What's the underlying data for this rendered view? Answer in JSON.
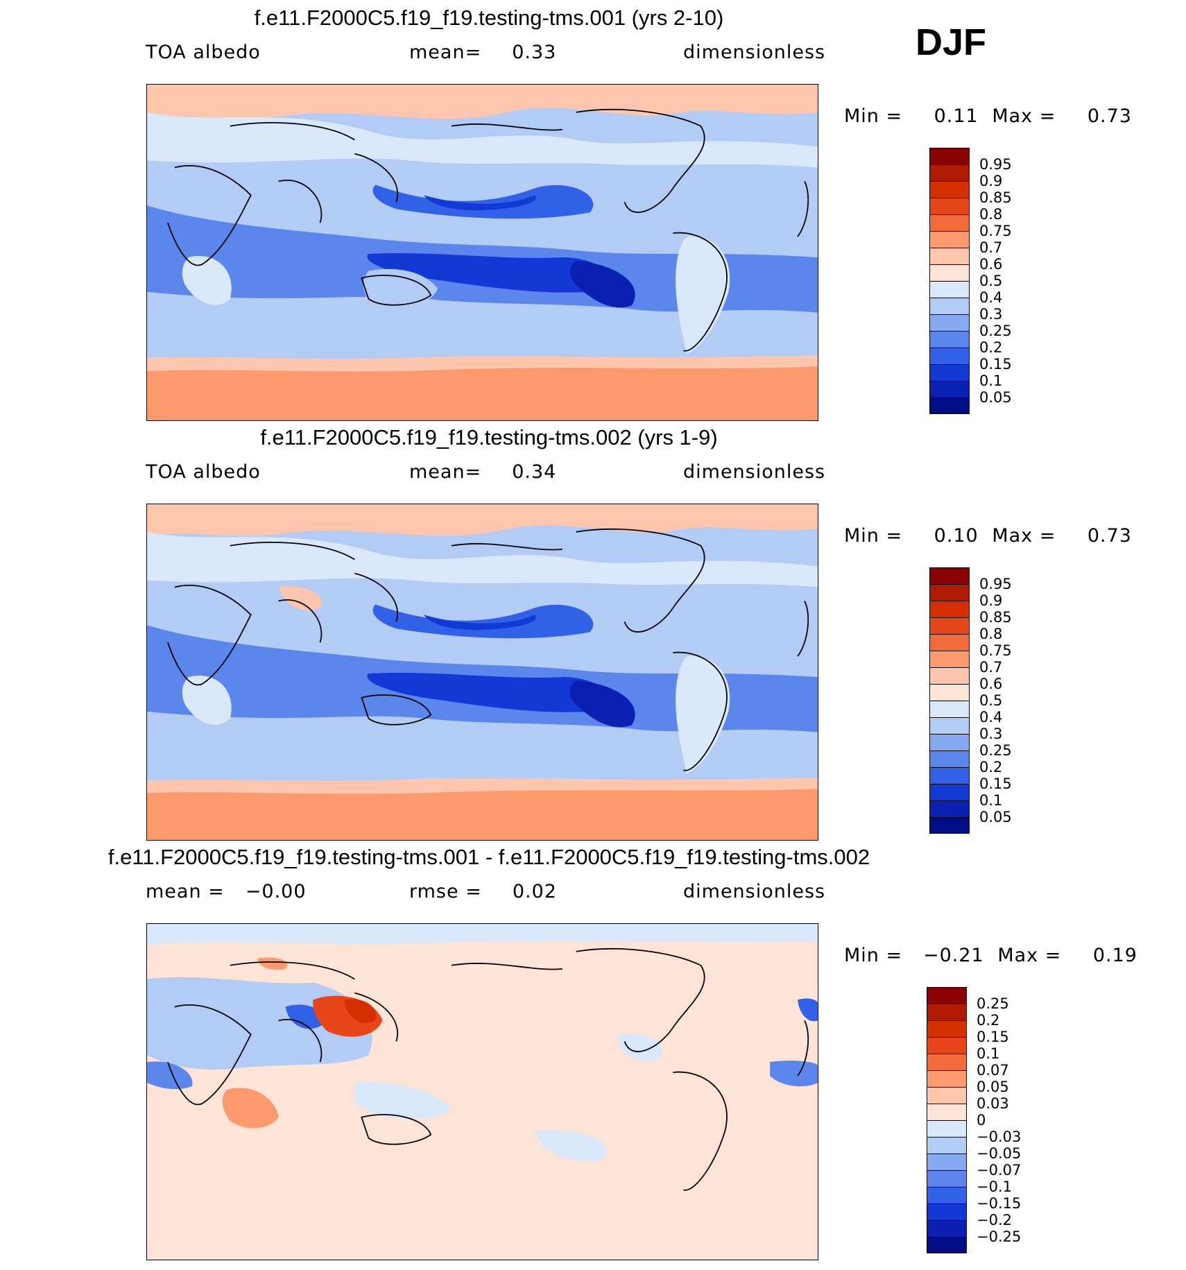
{
  "season_label": "DJF",
  "panels": [
    {
      "title": "f.e11.F2000C5.f19_f19.testing-tms.001 (yrs 2-10)",
      "left_label": "TOA  albedo",
      "mid_label": "mean=",
      "mid_value": "0.33",
      "right_label": "dimensionless",
      "min_label": "Min  =",
      "min_value": "0.11",
      "max_label": "Max  =",
      "max_value": "0.73",
      "levels": [
        "0.95",
        "0.9",
        "0.85",
        "0.8",
        "0.75",
        "0.7",
        "0.6",
        "0.5",
        "0.4",
        "0.3",
        "0.25",
        "0.2",
        "0.15",
        "0.1",
        "0.05"
      ],
      "colors": [
        "#8b0000",
        "#b01a00",
        "#d63000",
        "#e8451a",
        "#f26b3a",
        "#fc9a6e",
        "#fec7ad",
        "#fde4d6",
        "#d9e8fb",
        "#b3ccf5",
        "#86aaf0",
        "#5b86ec",
        "#3061e6",
        "#1239d6",
        "#0a20b0",
        "#000e85"
      ]
    },
    {
      "title": "f.e11.F2000C5.f19_f19.testing-tms.002 (yrs 1-9)",
      "left_label": "TOA  albedo",
      "mid_label": "mean=",
      "mid_value": "0.34",
      "right_label": "dimensionless",
      "min_label": "Min  =",
      "min_value": "0.10",
      "max_label": "Max  =",
      "max_value": "0.73",
      "levels": [
        "0.95",
        "0.9",
        "0.85",
        "0.8",
        "0.75",
        "0.7",
        "0.6",
        "0.5",
        "0.4",
        "0.3",
        "0.25",
        "0.2",
        "0.15",
        "0.1",
        "0.05"
      ],
      "colors": [
        "#8b0000",
        "#b01a00",
        "#d63000",
        "#e8451a",
        "#f26b3a",
        "#fc9a6e",
        "#fec7ad",
        "#fde4d6",
        "#d9e8fb",
        "#b3ccf5",
        "#86aaf0",
        "#5b86ec",
        "#3061e6",
        "#1239d6",
        "#0a20b0",
        "#000e85"
      ]
    },
    {
      "title": "f.e11.F2000C5.f19_f19.testing-tms.001 - f.e11.F2000C5.f19_f19.testing-tms.002",
      "left_label": "mean  =",
      "left_value": "−0.00",
      "mid_label": "rmse  =",
      "mid_value": "0.02",
      "right_label": "dimensionless",
      "min_label": "Min  =",
      "min_value": "−0.21",
      "max_label": "Max  =",
      "max_value": "0.19",
      "levels": [
        "0.25",
        "0.2",
        "0.15",
        "0.1",
        "0.07",
        "0.05",
        "0.03",
        "0",
        "−0.03",
        "−0.05",
        "−0.07",
        "−0.1",
        "−0.15",
        "−0.2",
        "−0.25"
      ],
      "colors": [
        "#8b0000",
        "#b01a00",
        "#d63000",
        "#e8451a",
        "#f26b3a",
        "#fc9a6e",
        "#fec7ad",
        "#fde4d6",
        "#d9e8fb",
        "#b3ccf5",
        "#86aaf0",
        "#5b86ec",
        "#3061e6",
        "#1239d6",
        "#0a20b0",
        "#000e85"
      ]
    }
  ],
  "chart_data": [
    {
      "type": "heatmap",
      "title": "f.e11.F2000C5.f19_f19.testing-tms.001 (yrs 2-10)",
      "mean": 0.33,
      "min": 0.11,
      "max": 0.73,
      "contour_levels": [
        0.05,
        0.1,
        0.15,
        0.2,
        0.25,
        0.3,
        0.4,
        0.5,
        0.6,
        0.7,
        0.75,
        0.8,
        0.85,
        0.9,
        0.95
      ]
    },
    {
      "type": "heatmap",
      "title": "f.e11.F2000C5.f19_f19.testing-tms.002 (yrs 1-9)",
      "mean": 0.34,
      "min": 0.1,
      "max": 0.73,
      "contour_levels": [
        0.05,
        0.1,
        0.15,
        0.2,
        0.25,
        0.3,
        0.4,
        0.5,
        0.6,
        0.7,
        0.75,
        0.8,
        0.85,
        0.9,
        0.95
      ]
    },
    {
      "type": "heatmap",
      "title": "f.e11.F2000C5.f19_f19.testing-tms.001 - f.e11.F2000C5.f19_f19.testing-tms.002",
      "mean": -0.0,
      "rmse": 0.02,
      "min": -0.21,
      "max": 0.19,
      "contour_levels": [
        -0.25,
        -0.2,
        -0.15,
        -0.1,
        -0.07,
        -0.05,
        -0.03,
        0,
        0.03,
        0.05,
        0.07,
        0.1,
        0.15,
        0.2,
        0.25
      ]
    }
  ]
}
